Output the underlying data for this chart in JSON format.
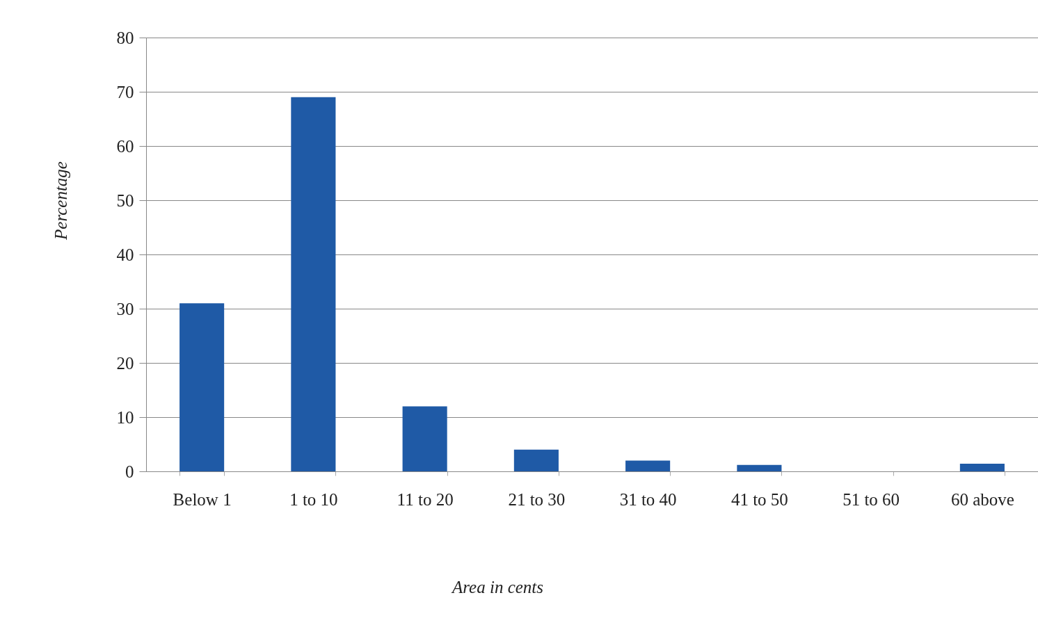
{
  "chart_data": {
    "type": "bar",
    "categories": [
      "Below 1",
      "1 to 10",
      "11 to 20",
      "21 to 30",
      "31 to 40",
      "41 to 50",
      "51 to 60",
      "60 above"
    ],
    "values": [
      31,
      69,
      12,
      4,
      2,
      1.2,
      0,
      1.4
    ],
    "color": "#1f5aa6",
    "xlabel": "Area in cents",
    "ylabel": "Percentage",
    "ylim": [
      0,
      80
    ],
    "yticks": [
      0,
      10,
      20,
      30,
      40,
      50,
      60,
      70,
      80
    ],
    "grid": "y"
  }
}
